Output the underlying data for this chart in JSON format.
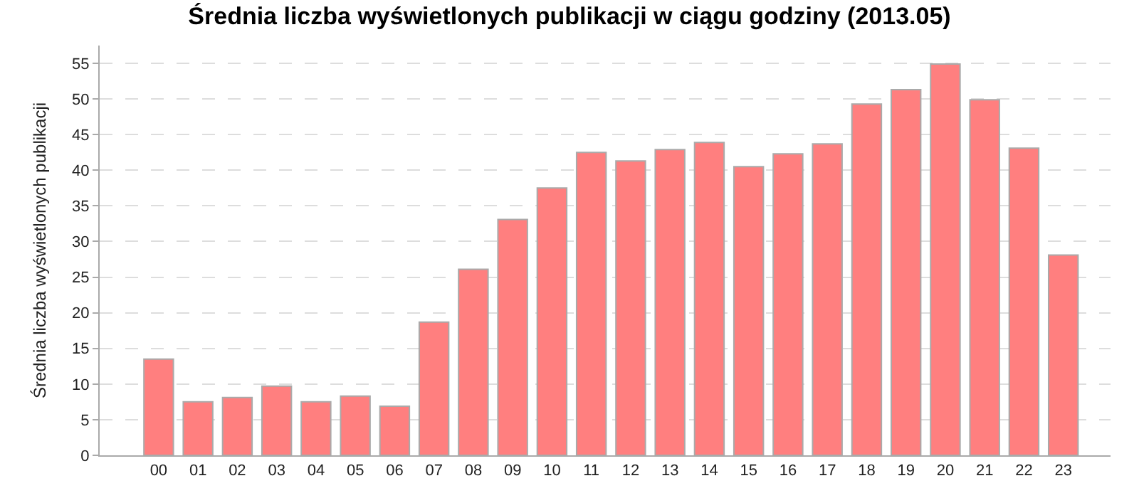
{
  "chart_data": {
    "type": "bar",
    "title": "Średnia liczba wyświetlonych publikacji w ciągu godziny (2013.05)",
    "ylabel": "Średnia liczba wyświetlonych publikacji",
    "categories": [
      "00",
      "01",
      "02",
      "03",
      "04",
      "05",
      "06",
      "07",
      "08",
      "09",
      "10",
      "11",
      "12",
      "13",
      "14",
      "15",
      "16",
      "17",
      "18",
      "19",
      "20",
      "21",
      "22",
      "23"
    ],
    "values": [
      13.5,
      7.5,
      8.1,
      9.7,
      7.5,
      8.3,
      6.9,
      18.7,
      26.1,
      33.1,
      37.5,
      42.5,
      41.3,
      42.9,
      43.9,
      40.5,
      42.3,
      43.7,
      49.3,
      51.3,
      54.9,
      49.9,
      43.1,
      28.1
    ],
    "color": "#ff7f7f",
    "ylim": [
      0,
      57.5
    ],
    "yticks": [
      0,
      5,
      10,
      15,
      20,
      25,
      30,
      35,
      40,
      45,
      50,
      55
    ],
    "grid": "y"
  }
}
